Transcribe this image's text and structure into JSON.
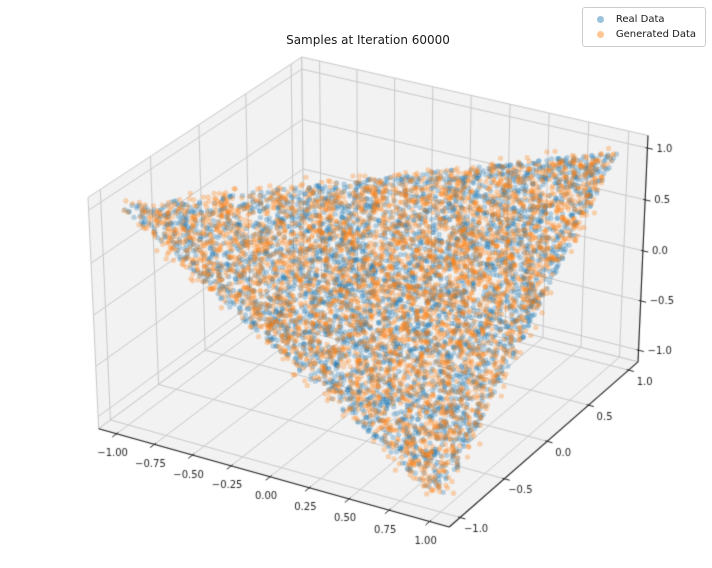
{
  "figure": {
    "background": "#ffffff"
  },
  "chart_data": {
    "type": "scatter",
    "projection": "3d",
    "title": "Samples at Iteration 60000",
    "view": {
      "elev": 30,
      "azim": -60,
      "proj_type": "persp",
      "box_aspect": [
        4,
        4,
        3
      ]
    },
    "axes": {
      "x": {
        "lim": [
          -1.12,
          1.12
        ],
        "ticks": [
          -1,
          -0.75,
          -0.5,
          -0.25,
          0,
          0.25,
          0.5,
          0.75,
          1
        ],
        "tick_labels": [
          "−1.00",
          "−0.75",
          "−0.50",
          "−0.25",
          "0.00",
          "0.25",
          "0.50",
          "0.75",
          "1.00"
        ]
      },
      "y": {
        "lim": [
          -1.12,
          1.12
        ],
        "ticks": [
          -1,
          -0.5,
          0,
          0.5,
          1
        ],
        "tick_labels": [
          "−1.0",
          "−0.5",
          "0.0",
          "0.5",
          "1.0"
        ]
      },
      "z": {
        "lim": [
          -1.12,
          1.12
        ],
        "ticks": [
          -1,
          -0.5,
          0,
          0.5,
          1
        ],
        "tick_labels": [
          "−1.0",
          "−0.5",
          "0.0",
          "0.5",
          "1.0"
        ]
      }
    },
    "series": [
      {
        "name": "Real Data",
        "color": "#1f77b4",
        "alpha": 0.3,
        "marker_diameter_px": 5,
        "count": 4000,
        "distribution": "uniform-on-triangle",
        "triangle_vertices_xyz": [
          [
            1,
            -1,
            -1
          ],
          [
            -1,
            -1,
            1
          ],
          [
            1,
            1,
            1
          ]
        ],
        "jitter_sigma": 0.0,
        "seed": 20240601
      },
      {
        "name": "Generated Data",
        "color": "#ff7f0e",
        "alpha": 0.3,
        "marker_diameter_px": 5,
        "count": 4000,
        "distribution": "uniform-on-triangle",
        "triangle_vertices_xyz": [
          [
            1,
            -1,
            -1
          ],
          [
            -1,
            -1,
            1
          ],
          [
            1,
            1,
            1
          ]
        ],
        "jitter_sigma": 0.03,
        "seed": 777
      }
    ],
    "style": {
      "pane_color": "#f2f2f2",
      "pane_edge_color": "#c9c9c9",
      "grid_color": "#c9c9c9",
      "axis_line_color": "#262626",
      "tick_color": "#262626",
      "tick_label_color": "#262626",
      "title_color": "#1a1a1a"
    },
    "grid": true,
    "legend_position": "upper right"
  },
  "legend": {
    "border_color": "#cccccc",
    "background": "#ffffff",
    "items": [
      {
        "label": "Real Data",
        "color": "#1f77b4"
      },
      {
        "label": "Generated Data",
        "color": "#ff7f0e"
      }
    ]
  }
}
